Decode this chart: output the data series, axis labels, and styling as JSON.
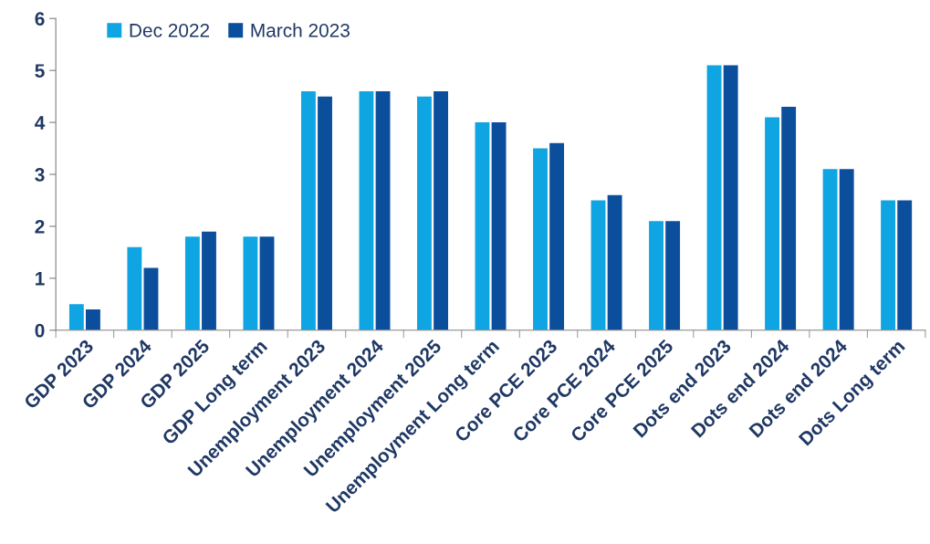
{
  "chart_data": {
    "type": "bar",
    "categories": [
      "GDP 2023",
      "GDP 2024",
      "GDP 2025",
      "GDP Long term",
      "Unemployment 2023",
      "Unemployment 2024",
      "Unemployment 2025",
      "Unemployment Long term",
      "Core PCE 2023",
      "Core PCE 2024",
      "Core PCE 2025",
      "Dots end 2023",
      "Dots end 2024",
      "Dots end 2024",
      "Dots Long term"
    ],
    "series": [
      {
        "name": "Dec 2022",
        "color": "#0ea5e2",
        "values": [
          0.5,
          1.6,
          1.8,
          1.8,
          4.6,
          4.6,
          4.5,
          4.0,
          3.5,
          2.5,
          2.1,
          5.1,
          4.1,
          3.1,
          2.5
        ]
      },
      {
        "name": "March 2023",
        "color": "#0b4f9c",
        "values": [
          0.4,
          1.2,
          1.9,
          1.8,
          4.5,
          4.6,
          4.6,
          4.0,
          3.6,
          2.6,
          2.1,
          5.1,
          4.3,
          3.1,
          2.5
        ]
      }
    ],
    "ylim": [
      0,
      6
    ],
    "yticks": [
      0,
      1,
      2,
      3,
      4,
      5,
      6
    ],
    "grid": false,
    "legend": "top left"
  }
}
